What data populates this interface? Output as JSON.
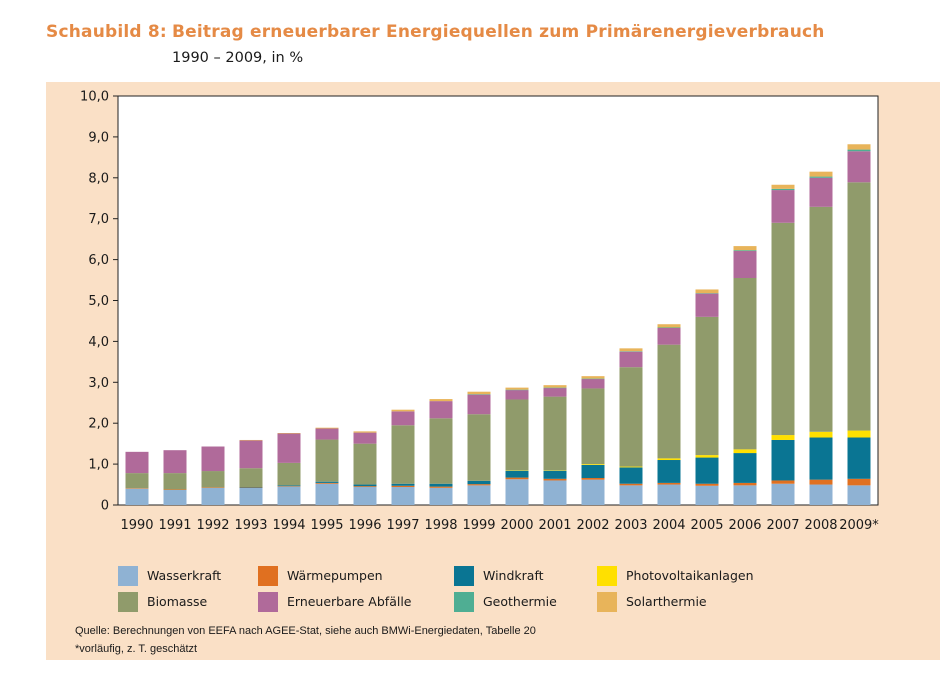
{
  "header": {
    "figure_label": "Schaubild 8:",
    "title": "Beitrag erneuerbarer Energiequellen zum Primärenergieverbrauch",
    "subtitle": "1990 – 2009, in %"
  },
  "colors": {
    "panel_background": "#fae0c6",
    "title": "#e58a45",
    "Wasserkraft": "#8fb2d3",
    "Wärmepumpen": "#e07020",
    "Windkraft": "#0a7593",
    "Photovoltaikanlagen": "#ffe000",
    "Biomasse": "#909b6b",
    "Erneuerbare Abfälle": "#b06a9a",
    "Geothermie": "#4fae93",
    "Solarthermie": "#e8b45a"
  },
  "chart_data": {
    "type": "bar",
    "stacked": true,
    "categories": [
      "1990",
      "1991",
      "1992",
      "1993",
      "1994",
      "1995",
      "1996",
      "1997",
      "1998",
      "1999",
      "2000",
      "2001",
      "2002",
      "2003",
      "2004",
      "2005",
      "2006",
      "2007",
      "2008",
      "2009*"
    ],
    "ylim": [
      0,
      10
    ],
    "yticks": [
      "0",
      "1,0",
      "2,0",
      "3,0",
      "4,0",
      "5,0",
      "6,0",
      "7,0",
      "8,0",
      "9,0",
      "10,0"
    ],
    "grid": false,
    "legend_position": "bottom",
    "series": [
      {
        "name": "Wasserkraft",
        "values": [
          0.4,
          0.37,
          0.42,
          0.42,
          0.45,
          0.52,
          0.44,
          0.44,
          0.42,
          0.48,
          0.63,
          0.6,
          0.62,
          0.48,
          0.5,
          0.47,
          0.48,
          0.52,
          0.5,
          0.48
        ]
      },
      {
        "name": "Wärmepumpen",
        "values": [
          0.01,
          0.01,
          0.01,
          0.01,
          0.01,
          0.02,
          0.02,
          0.03,
          0.03,
          0.03,
          0.04,
          0.04,
          0.04,
          0.04,
          0.04,
          0.05,
          0.06,
          0.08,
          0.12,
          0.16
        ]
      },
      {
        "name": "Windkraft",
        "values": [
          0,
          0,
          0,
          0.01,
          0.02,
          0.03,
          0.04,
          0.05,
          0.07,
          0.08,
          0.17,
          0.2,
          0.32,
          0.4,
          0.56,
          0.64,
          0.73,
          0.99,
          1.03,
          1.01
        ]
      },
      {
        "name": "Photovoltaikanlagen",
        "values": [
          0,
          0,
          0,
          0,
          0,
          0,
          0,
          0,
          0,
          0,
          0.01,
          0.01,
          0.02,
          0.02,
          0.04,
          0.06,
          0.09,
          0.12,
          0.14,
          0.17
        ]
      },
      {
        "name": "Biomasse",
        "values": [
          0.37,
          0.4,
          0.4,
          0.46,
          0.55,
          1.03,
          1.0,
          1.43,
          1.6,
          1.63,
          1.73,
          1.8,
          1.85,
          2.43,
          2.78,
          3.38,
          4.19,
          5.19,
          5.5,
          6.07
        ]
      },
      {
        "name": "Erneuerbare Abfälle",
        "values": [
          0.52,
          0.56,
          0.6,
          0.68,
          0.72,
          0.27,
          0.27,
          0.34,
          0.42,
          0.48,
          0.23,
          0.21,
          0.23,
          0.38,
          0.41,
          0.57,
          0.66,
          0.8,
          0.71,
          0.76
        ]
      },
      {
        "name": "Geothermie",
        "values": [
          0,
          0,
          0,
          0,
          0,
          0,
          0,
          0,
          0,
          0.01,
          0.01,
          0.01,
          0.01,
          0.01,
          0.01,
          0.01,
          0.02,
          0.03,
          0.03,
          0.04
        ]
      },
      {
        "name": "Solarthermie",
        "values": [
          0,
          0,
          0,
          0.01,
          0.01,
          0.02,
          0.03,
          0.04,
          0.05,
          0.06,
          0.05,
          0.06,
          0.06,
          0.07,
          0.08,
          0.09,
          0.1,
          0.1,
          0.12,
          0.13
        ]
      }
    ]
  },
  "legend": {
    "items": [
      {
        "label": "Wasserkraft",
        "color": "#8fb2d3"
      },
      {
        "label": "Wärmepumpen",
        "color": "#e07020"
      },
      {
        "label": "Windkraft",
        "color": "#0a7593"
      },
      {
        "label": "Photovoltaikanlagen",
        "color": "#ffe000"
      },
      {
        "label": "Biomasse",
        "color": "#909b6b"
      },
      {
        "label": "Erneuerbare Abfälle",
        "color": "#b06a9a"
      },
      {
        "label": "Geothermie",
        "color": "#4fae93"
      },
      {
        "label": "Solarthermie",
        "color": "#e8b45a"
      }
    ]
  },
  "source": {
    "line1": "Quelle: Berechnungen von EEFA nach AGEE-Stat, siehe auch BMWi-Energiedaten, Tabelle 20",
    "line2": "*vorläufig, z. T. geschätzt"
  }
}
